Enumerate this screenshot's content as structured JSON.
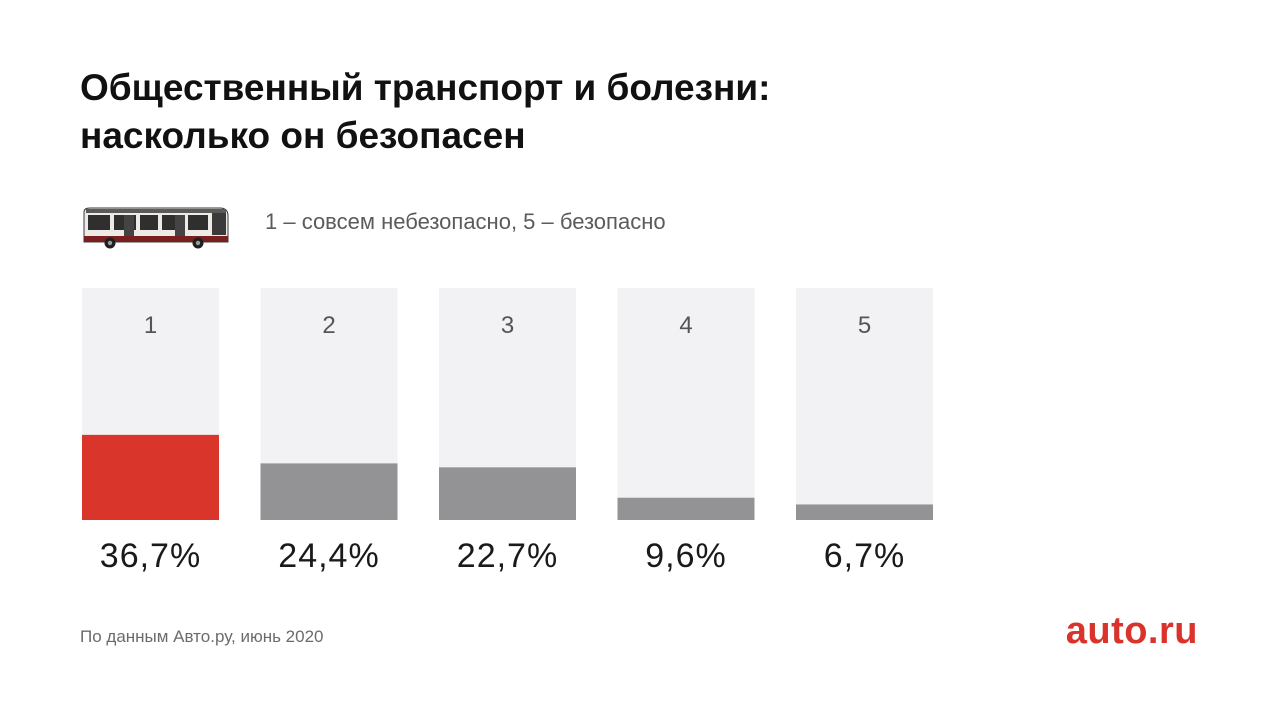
{
  "title_lines": [
    "Общественный транспорт и болезни:",
    "насколько он безопасен"
  ],
  "scale_note": "1 – совсем небезопасно, 5 – безопасно",
  "source": "По данным Авто.ру, июнь 2020",
  "brand": "auto.ru",
  "colors": {
    "highlight": "#d9352a",
    "bar": "#939395",
    "track": "#f2f2f4",
    "category_label": "#555555",
    "value_label": "#1a1a1a"
  },
  "chart_data": {
    "type": "bar",
    "categories": [
      "1",
      "2",
      "3",
      "4",
      "5"
    ],
    "values": [
      36.7,
      24.4,
      22.7,
      9.6,
      6.7
    ],
    "value_labels": [
      "36,7%",
      "24,4%",
      "22,7%",
      "9,6%",
      "6,7%"
    ],
    "unit": "%",
    "ylim": [
      0,
      100
    ],
    "highlight_index": 0,
    "grid": false,
    "title": "Общественный транспорт и болезни: насколько он безопасен"
  },
  "icons": {
    "bus": "bus-icon"
  }
}
